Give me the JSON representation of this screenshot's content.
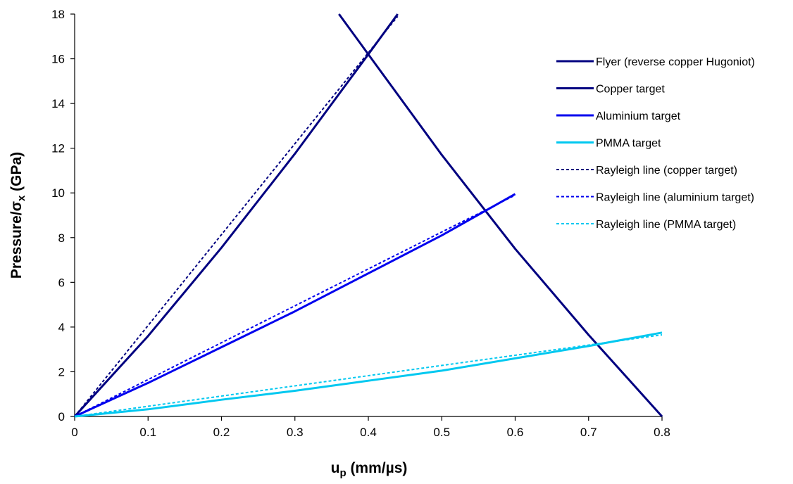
{
  "chart_data": {
    "type": "line",
    "xlabel": {
      "main": "u",
      "sub": "p",
      "rest": " (mm/µs)"
    },
    "ylabel": {
      "pre": "Pressure/σ",
      "sub": "x",
      "post": " (GPa)"
    },
    "xlim": [
      0,
      0.8
    ],
    "ylim": [
      0,
      18
    ],
    "xticks": [
      0,
      0.1,
      0.2,
      0.3,
      0.4,
      0.5,
      0.6,
      0.7,
      0.8
    ],
    "xtick_labels": [
      "0",
      "0.1",
      "0.2",
      "0.3",
      "0.4",
      "0.5",
      "0.6",
      "0.7",
      "0.8"
    ],
    "yticks": [
      0,
      2,
      4,
      6,
      8,
      10,
      12,
      14,
      16,
      18
    ],
    "ytick_labels": [
      "0",
      "2",
      "4",
      "6",
      "8",
      "10",
      "12",
      "14",
      "16",
      "18"
    ],
    "grid": false,
    "legend_position": "top-right",
    "series": [
      {
        "name": "Flyer (reverse copper Hugoniot)",
        "color": "#000080",
        "style": "solid",
        "x": [
          0.36,
          0.4,
          0.5,
          0.6,
          0.7,
          0.8
        ],
        "y": [
          18.0,
          16.2,
          11.7,
          7.5,
          3.65,
          0.0
        ]
      },
      {
        "name": "Copper target",
        "color": "#000080",
        "style": "solid",
        "x": [
          0,
          0.1,
          0.2,
          0.3,
          0.4,
          0.44
        ],
        "y": [
          0,
          3.6,
          7.55,
          11.75,
          16.2,
          18.0
        ]
      },
      {
        "name": "Aluminium target",
        "color": "#0000ee",
        "style": "solid",
        "x": [
          0,
          0.1,
          0.2,
          0.3,
          0.4,
          0.5,
          0.6
        ],
        "y": [
          0,
          1.5,
          3.1,
          4.7,
          6.4,
          8.1,
          9.95
        ]
      },
      {
        "name": "PMMA target",
        "color": "#00c8f0",
        "style": "solid",
        "x": [
          0,
          0.1,
          0.2,
          0.3,
          0.4,
          0.5,
          0.6,
          0.7,
          0.8
        ],
        "y": [
          0,
          0.32,
          0.75,
          1.15,
          1.6,
          2.05,
          2.6,
          3.15,
          3.75
        ]
      },
      {
        "name": "Rayleigh line (copper target)",
        "color": "#000080",
        "style": "dotted",
        "x": [
          0,
          0.44
        ],
        "y": [
          0,
          17.9
        ]
      },
      {
        "name": "Rayleigh line (aluminium target)",
        "color": "#0000ee",
        "style": "dotted",
        "x": [
          0,
          0.6
        ],
        "y": [
          0,
          9.9
        ]
      },
      {
        "name": "Rayleigh line (PMMA target)",
        "color": "#00c8f0",
        "style": "dotted",
        "x": [
          0,
          0.8
        ],
        "y": [
          0,
          3.65
        ]
      }
    ]
  }
}
